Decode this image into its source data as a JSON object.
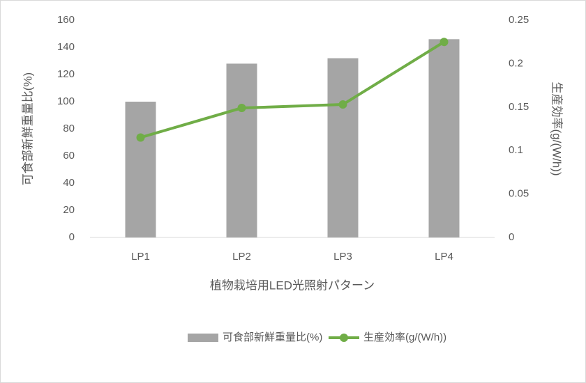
{
  "chart_data": {
    "type": "combo",
    "x_label": "植物栽培用LED光照射パターン",
    "y_label": "可食部新鮮重量比(%)",
    "y2_label": "生産効率(g/(W/h))",
    "categories": [
      "LP1",
      "LP2",
      "LP3",
      "LP4"
    ],
    "series": [
      {
        "name": "可食部新鮮重量比(%)",
        "type": "bar",
        "color": "#a5a5a5",
        "values": [
          100,
          128,
          132,
          146
        ]
      },
      {
        "name": "生産効率(g/(W/h))",
        "type": "line",
        "axis": "y2",
        "color": "#70ad47",
        "values": [
          0.115,
          0.149,
          0.153,
          0.225
        ]
      }
    ],
    "ylim": [
      0,
      160
    ],
    "yticks": [
      0,
      20,
      40,
      60,
      80,
      100,
      120,
      140,
      160
    ],
    "y2lim": [
      0,
      0.25
    ],
    "y2ticks": [
      0,
      0.05,
      0.1,
      0.15,
      0.2,
      0.25
    ],
    "grid": false,
    "legend": "bottom"
  }
}
